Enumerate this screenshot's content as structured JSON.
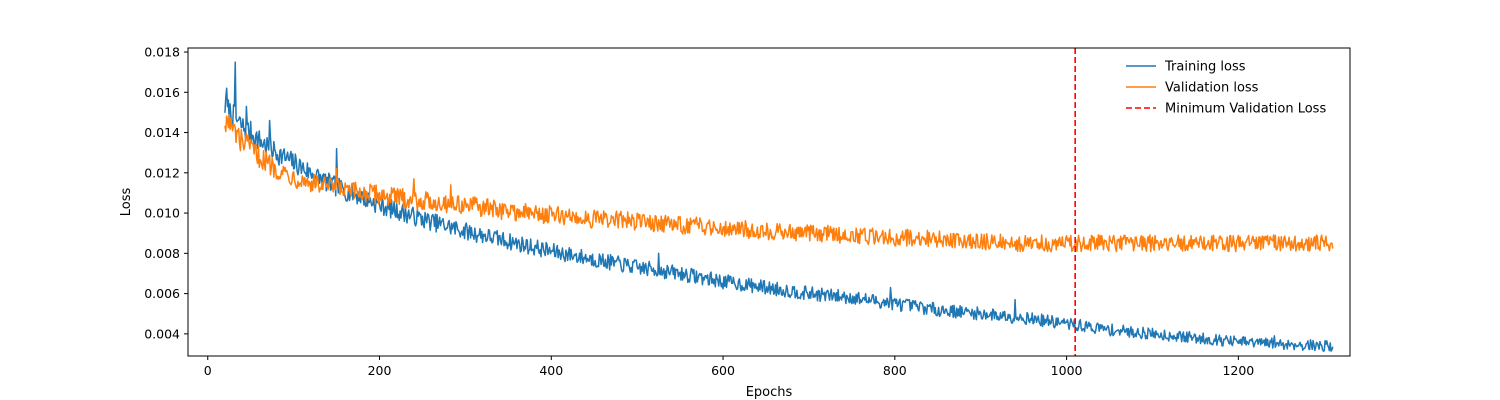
{
  "chart_data": {
    "type": "line",
    "title": "",
    "xlabel": "Epochs",
    "ylabel": "Loss",
    "xlim": [
      -23,
      1330
    ],
    "ylim": [
      0.0029,
      0.0182
    ],
    "xticks": [
      0,
      200,
      400,
      600,
      800,
      1000,
      1200
    ],
    "yticks": [
      0.004,
      0.006,
      0.008,
      0.01,
      0.012,
      0.014,
      0.016,
      0.018
    ],
    "xtick_labels": [
      "0",
      "200",
      "400",
      "600",
      "800",
      "1000",
      "1200"
    ],
    "ytick_labels": [
      "0.004",
      "0.006",
      "0.008",
      "0.010",
      "0.012",
      "0.014",
      "0.016",
      "0.018"
    ],
    "grid": false,
    "legend_position": "top-right",
    "series": [
      {
        "name": "Training loss",
        "color": "#1f77b4",
        "x": [
          20,
          30,
          40,
          50,
          60,
          70,
          80,
          100,
          120,
          140,
          160,
          180,
          200,
          250,
          300,
          350,
          400,
          450,
          500,
          550,
          600,
          650,
          700,
          750,
          800,
          850,
          900,
          950,
          1000,
          1050,
          1100,
          1150,
          1200,
          1250,
          1300,
          1310
        ],
        "y": [
          0.0153,
          0.0148,
          0.0143,
          0.014,
          0.0136,
          0.0133,
          0.013,
          0.0125,
          0.012,
          0.0115,
          0.0111,
          0.0108,
          0.0104,
          0.0097,
          0.0091,
          0.0086,
          0.0081,
          0.0077,
          0.0073,
          0.007,
          0.0066,
          0.0063,
          0.006,
          0.0058,
          0.0055,
          0.0052,
          0.005,
          0.0048,
          0.0045,
          0.0042,
          0.004,
          0.0038,
          0.0036,
          0.0035,
          0.0034,
          0.0034
        ],
        "spikes": [
          {
            "x": 22,
            "y": 0.0162
          },
          {
            "x": 32,
            "y": 0.0175
          },
          {
            "x": 45,
            "y": 0.0153
          },
          {
            "x": 72,
            "y": 0.0146
          },
          {
            "x": 150,
            "y": 0.0132
          },
          {
            "x": 525,
            "y": 0.008
          },
          {
            "x": 795,
            "y": 0.0063
          },
          {
            "x": 940,
            "y": 0.0057
          },
          {
            "x": 1242,
            "y": 0.0039
          }
        ]
      },
      {
        "name": "Validation loss",
        "color": "#ff7f0e",
        "x": [
          20,
          30,
          40,
          50,
          60,
          70,
          80,
          100,
          120,
          140,
          160,
          180,
          200,
          250,
          300,
          350,
          400,
          450,
          500,
          550,
          600,
          650,
          700,
          750,
          800,
          850,
          900,
          950,
          1000,
          1050,
          1100,
          1150,
          1200,
          1250,
          1300,
          1310
        ],
        "y": [
          0.0146,
          0.0141,
          0.0136,
          0.0132,
          0.0128,
          0.0125,
          0.0122,
          0.0118,
          0.0115,
          0.0113,
          0.0111,
          0.011,
          0.0109,
          0.0106,
          0.0104,
          0.0101,
          0.0099,
          0.0097,
          0.0096,
          0.0094,
          0.0093,
          0.0091,
          0.009,
          0.0089,
          0.0088,
          0.0087,
          0.0086,
          0.0085,
          0.0085,
          0.0085,
          0.0085,
          0.0085,
          0.0085,
          0.0085,
          0.0085,
          0.0084
        ],
        "spikes": [
          {
            "x": 25,
            "y": 0.0149
          },
          {
            "x": 38,
            "y": 0.0131
          },
          {
            "x": 150,
            "y": 0.0122
          },
          {
            "x": 240,
            "y": 0.0117
          },
          {
            "x": 283,
            "y": 0.0114
          }
        ]
      }
    ],
    "marker": {
      "name": "Minimum Validation Loss",
      "color": "#ff0000",
      "x": 1010,
      "style": "dashed"
    }
  }
}
